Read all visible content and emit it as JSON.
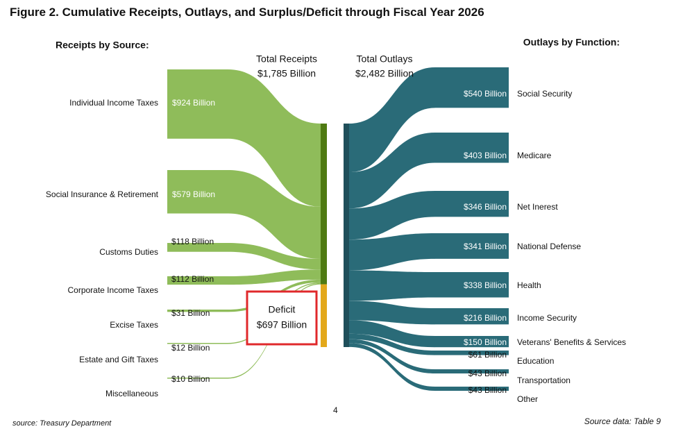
{
  "title": "Figure 2. Cumulative Receipts, Outlays, and Surplus/Deficit through Fiscal Year 2026",
  "footer": {
    "source": "source: Treasury Department",
    "source_data": "Source data: Table 9",
    "page_number": "4"
  },
  "colors": {
    "receipts": "#8fbc5a",
    "receipts_bar": "#4f7a12",
    "deficit": "#e3a81b",
    "outlays": "#2a6b78",
    "outlays_bar": "#1f4f5a",
    "deficit_box": "#e0282b"
  },
  "chart_data": {
    "type": "sankey",
    "units": "Billion",
    "left_heading": "Receipts by Source:",
    "right_heading": "Outlays by Function:",
    "total_receipts": {
      "label_line1": "Total Receipts",
      "label_line2": "$1,785 Billion",
      "value": 1785
    },
    "total_outlays": {
      "label_line1": "Total Outlays",
      "label_line2": "$2,482 Billion",
      "value": 2482
    },
    "deficit": {
      "label_line1": "Deficit",
      "label_line2": "$697 Billion",
      "value": 697
    },
    "receipts": [
      {
        "name": "Individual Income Taxes",
        "value": 924,
        "value_label": "$924 Billion"
      },
      {
        "name": "Social Insurance & Retirement",
        "value": 579,
        "value_label": "$579 Billion"
      },
      {
        "name": "Customs Duties",
        "value": 118,
        "value_label": "$118 Billion"
      },
      {
        "name": "Corporate Income Taxes",
        "value": 112,
        "value_label": "$112 Billion"
      },
      {
        "name": "Excise Taxes",
        "value": 31,
        "value_label": "$31 Billion"
      },
      {
        "name": "Estate and Gift Taxes",
        "value": 12,
        "value_label": "$12 Billion"
      },
      {
        "name": "Miscellaneous",
        "value": 10,
        "value_label": "$10 Billion"
      }
    ],
    "outlays": [
      {
        "name": "Social Security",
        "value": 540,
        "value_label": "$540 Billion"
      },
      {
        "name": "Medicare",
        "value": 403,
        "value_label": "$403 Billion"
      },
      {
        "name": "Net Inerest",
        "value": 346,
        "value_label": "$346 Billion"
      },
      {
        "name": "National Defense",
        "value": 341,
        "value_label": "$341 Billion"
      },
      {
        "name": "Health",
        "value": 338,
        "value_label": "$338 Billion"
      },
      {
        "name": "Income Security",
        "value": 216,
        "value_label": "$216 Billion"
      },
      {
        "name": "Veterans' Benefits & Services",
        "value": 150,
        "value_label": "$150 Billion"
      },
      {
        "name": "Education",
        "value": 61,
        "value_label": "$61 Billion"
      },
      {
        "name": "Transportation",
        "value": 43,
        "value_label": "$43 Billion"
      },
      {
        "name": "Other",
        "value": 43,
        "value_label": "$43 Billion"
      }
    ]
  }
}
